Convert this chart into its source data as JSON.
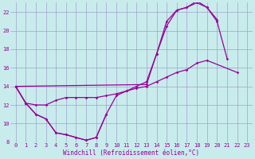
{
  "xlabel": "Windchill (Refroidissement éolien,°C)",
  "background_color": "#c8ecec",
  "grid_color": "#a0a0cc",
  "line_color": "#990099",
  "xlim": [
    -0.5,
    23.5
  ],
  "ylim": [
    8,
    23
  ],
  "yticks": [
    8,
    10,
    12,
    14,
    16,
    18,
    20,
    22
  ],
  "xticks": [
    0,
    1,
    2,
    3,
    4,
    5,
    6,
    7,
    8,
    9,
    10,
    11,
    12,
    13,
    14,
    15,
    16,
    17,
    18,
    19,
    20,
    21,
    22,
    23
  ],
  "curves": [
    {
      "x": [
        0,
        1,
        2,
        3,
        4,
        5,
        6,
        7,
        8,
        9
      ],
      "y": [
        14.0,
        12.2,
        11.0,
        10.5,
        9.0,
        8.8,
        8.5,
        8.2,
        8.5,
        11.0
      ]
    },
    {
      "x": [
        0,
        1,
        2,
        3,
        4,
        5,
        6,
        7,
        8,
        9,
        10,
        11,
        12,
        13,
        14,
        15,
        16,
        17,
        18,
        19,
        20,
        21
      ],
      "y": [
        14.0,
        12.2,
        11.0,
        10.5,
        9.0,
        8.8,
        8.5,
        8.2,
        8.5,
        11.0,
        13.0,
        13.5,
        14.0,
        14.5,
        17.5,
        20.5,
        22.2,
        22.5,
        23.0,
        22.5,
        21.0,
        17.0
      ]
    },
    {
      "x": [
        0,
        13,
        14,
        15,
        16,
        17,
        18,
        19,
        20
      ],
      "y": [
        14.0,
        14.2,
        17.5,
        21.0,
        22.2,
        22.5,
        23.2,
        22.5,
        21.2
      ]
    },
    {
      "x": [
        0,
        1,
        2,
        3,
        4,
        5,
        6,
        7,
        8,
        9,
        10,
        11,
        12,
        13,
        14,
        15,
        16,
        17,
        18,
        19,
        22
      ],
      "y": [
        14.0,
        12.2,
        12.0,
        12.0,
        12.5,
        12.8,
        12.8,
        12.8,
        12.8,
        13.0,
        13.2,
        13.5,
        13.8,
        14.0,
        14.5,
        15.0,
        15.5,
        15.8,
        16.5,
        16.8,
        15.5
      ]
    }
  ]
}
